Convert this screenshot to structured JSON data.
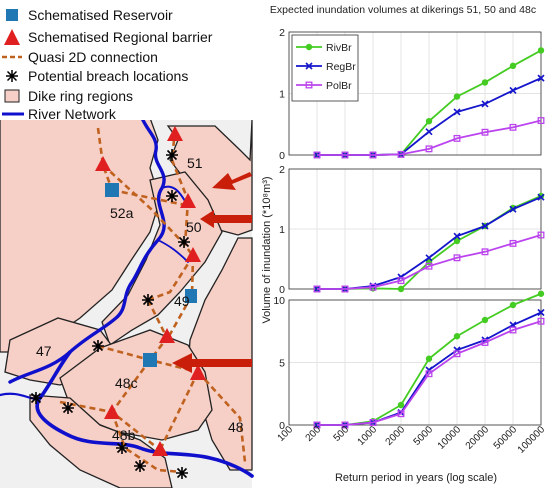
{
  "legend_left": {
    "items": [
      {
        "label": "Schematised Reservoir",
        "symbol": "square",
        "color": "#1f77b4"
      },
      {
        "label": "Schematised Regional barrier",
        "symbol": "triangle",
        "color": "#e02020"
      },
      {
        "label": "Quasi 2D connection",
        "symbol": "dashed-line",
        "color": "#c0621f"
      },
      {
        "label": "Potential breach locations",
        "symbol": "asterisk",
        "color": "#000000"
      },
      {
        "label": "Dike ring regions",
        "symbol": "box",
        "color": "#f6cfc6"
      },
      {
        "label": "River Network",
        "symbol": "line",
        "color": "#1010cc"
      }
    ]
  },
  "map": {
    "region_labels": [
      "51",
      "52a",
      "50",
      "49",
      "47",
      "48c",
      "48b",
      "48"
    ],
    "colors": {
      "background": "#f0f0f0",
      "dike_region": "#f6cfc6",
      "river": "#1010cc",
      "connection": "#c0621f",
      "reservoir": "#1f77b4",
      "barrier": "#e02020",
      "arrow": "#c81e0a"
    }
  },
  "chart_data": {
    "type": "line",
    "title": "Expected inundation volumes at dikerings 51, 50 and 48c",
    "ylabel": "Volume of inundation (*10⁸m³)",
    "xlabel": "Return period in years (log scale)",
    "x": [
      "100",
      "200",
      "500",
      "1000",
      "2000",
      "5000",
      "10000",
      "20000",
      "50000",
      "100000"
    ],
    "grid": true,
    "legend_position": "top-left",
    "series_styles": [
      {
        "name": "RivBr",
        "color": "#44cc22",
        "marker": "circle"
      },
      {
        "name": "RegBr",
        "color": "#1515cc",
        "marker": "x"
      },
      {
        "name": "PolBr",
        "color": "#bb44ee",
        "marker": "square"
      }
    ],
    "panels": [
      {
        "ylim": [
          0,
          2
        ],
        "yticks": [
          "0",
          "1",
          "2"
        ],
        "series": [
          {
            "name": "RivBr",
            "values": [
              null,
              0,
              0,
              0,
              0.01,
              0.55,
              0.95,
              1.18,
              1.45,
              1.7
            ]
          },
          {
            "name": "RegBr",
            "values": [
              null,
              0,
              0,
              0,
              0.01,
              0.38,
              0.7,
              0.83,
              1.05,
              1.25
            ]
          },
          {
            "name": "PolBr",
            "values": [
              null,
              0,
              0,
              0,
              0.01,
              0.1,
              0.27,
              0.37,
              0.45,
              0.56
            ]
          }
        ]
      },
      {
        "ylim": [
          0,
          2
        ],
        "yticks": [
          "0",
          "1",
          "2"
        ],
        "series": [
          {
            "name": "RivBr",
            "values": [
              null,
              0,
              0,
              0.01,
              0.0,
              0.45,
              0.8,
              1.05,
              1.35,
              1.55
            ]
          },
          {
            "name": "RegBr",
            "values": [
              null,
              0,
              0,
              0.05,
              0.2,
              0.52,
              0.88,
              1.05,
              1.33,
              1.53
            ]
          },
          {
            "name": "PolBr",
            "values": [
              null,
              0,
              0,
              0.03,
              0.14,
              0.38,
              0.52,
              0.62,
              0.76,
              0.9
            ]
          }
        ]
      },
      {
        "ylim": [
          0,
          10
        ],
        "yticks": [
          "0",
          "5",
          "10"
        ],
        "series": [
          {
            "name": "RivBr",
            "values": [
              null,
              0,
              0,
              0.3,
              1.6,
              5.3,
              7.1,
              8.4,
              9.6,
              10.5
            ]
          },
          {
            "name": "RegBr",
            "values": [
              null,
              0,
              0,
              0.2,
              1.0,
              4.4,
              6.0,
              6.8,
              8.0,
              9.0
            ]
          },
          {
            "name": "PolBr",
            "values": [
              null,
              0,
              0,
              0.2,
              0.9,
              4.1,
              5.7,
              6.6,
              7.6,
              8.3
            ]
          }
        ]
      }
    ]
  }
}
